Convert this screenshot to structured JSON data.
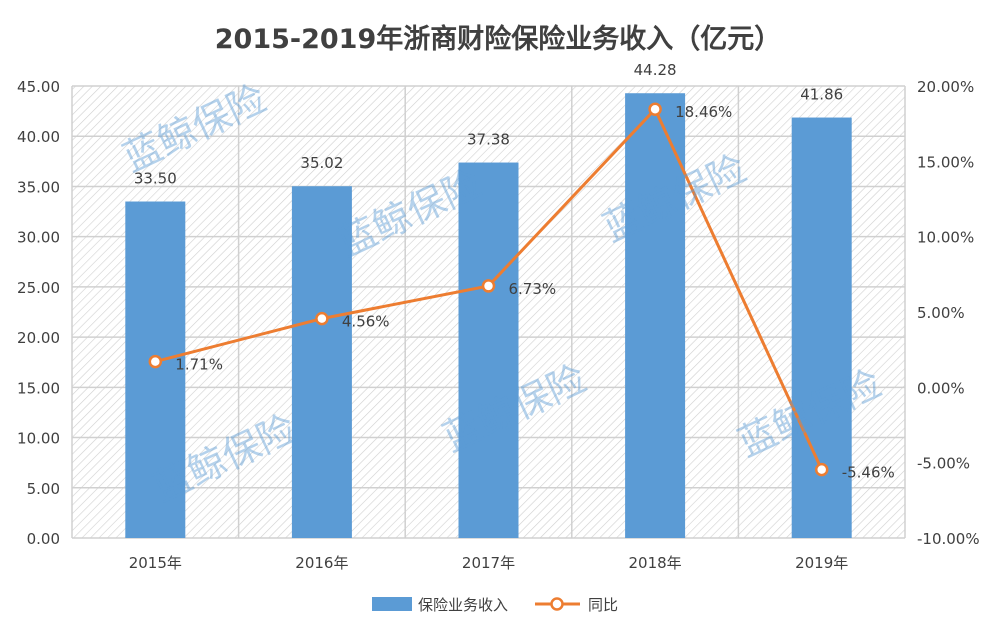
{
  "chart_data": {
    "type": "bar+line",
    "title": "2015-2019年浙商财险保险业务收入（亿元）",
    "categories": [
      "2015年",
      "2016年",
      "2017年",
      "2018年",
      "2019年"
    ],
    "series": [
      {
        "name": "保险业务收入",
        "type": "bar",
        "axis": "left",
        "values": [
          33.5,
          35.02,
          37.38,
          44.28,
          41.86
        ],
        "labels": [
          "33.50",
          "35.02",
          "37.38",
          "44.28",
          "41.86"
        ],
        "color": "#5B9BD5"
      },
      {
        "name": "同比",
        "type": "line",
        "axis": "right",
        "values": [
          1.71,
          4.56,
          6.73,
          18.46,
          -5.46
        ],
        "labels": [
          "1.71%",
          "4.56%",
          "6.73%",
          "18.46%",
          "-5.46%"
        ],
        "color": "#ED7D31"
      }
    ],
    "left_axis": {
      "ylim": [
        0,
        45
      ],
      "ticks": [
        "0.00",
        "5.00",
        "10.00",
        "15.00",
        "20.00",
        "25.00",
        "30.00",
        "35.00",
        "40.00",
        "45.00"
      ]
    },
    "right_axis": {
      "ylim": [
        -10,
        20
      ],
      "ticks": [
        "-10.00%",
        "-5.00%",
        "0.00%",
        "5.00%",
        "10.00%",
        "15.00%",
        "20.00%"
      ]
    },
    "grid": true,
    "legend": "bottom",
    "watermark": "蓝鲸保险"
  }
}
